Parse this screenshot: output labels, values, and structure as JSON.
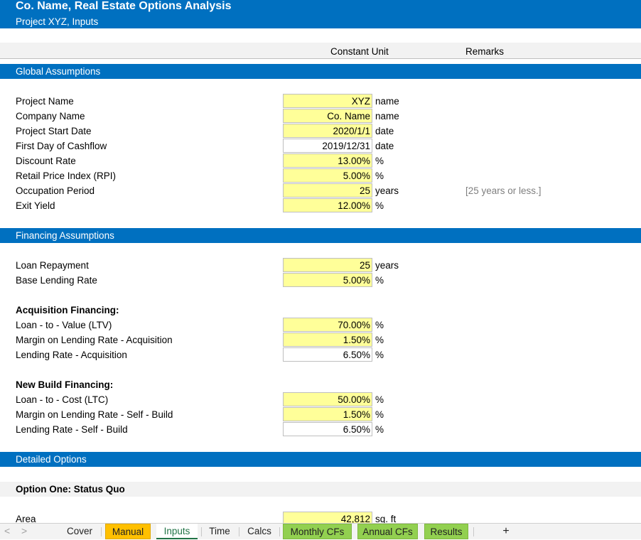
{
  "title": {
    "main": "Co. Name, Real Estate Options Analysis",
    "sub": "Project XYZ, Inputs"
  },
  "column_headers": {
    "constant_unit": "Constant Unit",
    "remarks": "Remarks"
  },
  "sections": {
    "global": "Global Assumptions",
    "financing": "Financing Assumptions",
    "detailed": "Detailed Options",
    "option_one": "Option One: Status Quo"
  },
  "global_rows": [
    {
      "label": "Project Name",
      "value": "XYZ",
      "unit": "name",
      "remark": ""
    },
    {
      "label": "Company Name",
      "value": "Co. Name",
      "unit": "name",
      "remark": ""
    },
    {
      "label": "Project Start Date",
      "value": "2020/1/1",
      "unit": "date",
      "remark": ""
    },
    {
      "label": "First Day of Cashflow",
      "value": "2019/12/31",
      "unit": "date",
      "remark": ""
    },
    {
      "label": "Discount Rate",
      "value": "13.00%",
      "unit": "%",
      "remark": ""
    },
    {
      "label": "Retail Price Index (RPI)",
      "value": "5.00%",
      "unit": "%",
      "remark": ""
    },
    {
      "label": "Occupation Period",
      "value": "25",
      "unit": "years",
      "remark": "[25 years or less.]"
    },
    {
      "label": "Exit Yield",
      "value": "12.00%",
      "unit": "%",
      "remark": ""
    }
  ],
  "financing_rows": [
    {
      "label": "Loan Repayment",
      "value": "25",
      "unit": "years"
    },
    {
      "label": "Base Lending Rate",
      "value": "5.00%",
      "unit": "%"
    }
  ],
  "acquisition": {
    "heading": "Acquisition Financing:",
    "rows": [
      {
        "label": "Loan - to - Value (LTV)",
        "value": "70.00%",
        "unit": "%"
      },
      {
        "label": "Margin on Lending Rate - Acquisition",
        "value": "1.50%",
        "unit": "%"
      },
      {
        "label": "Lending Rate - Acquisition",
        "value": "6.50%",
        "unit": "%"
      }
    ]
  },
  "new_build": {
    "heading": "New Build Financing:",
    "rows": [
      {
        "label": "Loan - to - Cost (LTC)",
        "value": "50.00%",
        "unit": "%"
      },
      {
        "label": "Margin on Lending Rate - Self - Build",
        "value": "1.50%",
        "unit": "%"
      },
      {
        "label": "Lending Rate - Self - Build",
        "value": "6.50%",
        "unit": "%"
      }
    ]
  },
  "option_one_rows": [
    {
      "label": "Area",
      "value": "42,812",
      "unit": "sq. ft"
    }
  ],
  "tabs": {
    "prev": "<",
    "next": ">",
    "cover": "Cover",
    "manual": "Manual",
    "inputs": "Inputs",
    "time": "Time",
    "calcs": "Calcs",
    "monthly": "Monthly CFs",
    "annual": "Annual CFs",
    "results": "Results",
    "add": "+"
  },
  "colors": {
    "section_blue": "#0070C0",
    "input_yellow": "#FFFF99",
    "tab_orange": "#FFC000",
    "tab_green": "#92D050"
  }
}
